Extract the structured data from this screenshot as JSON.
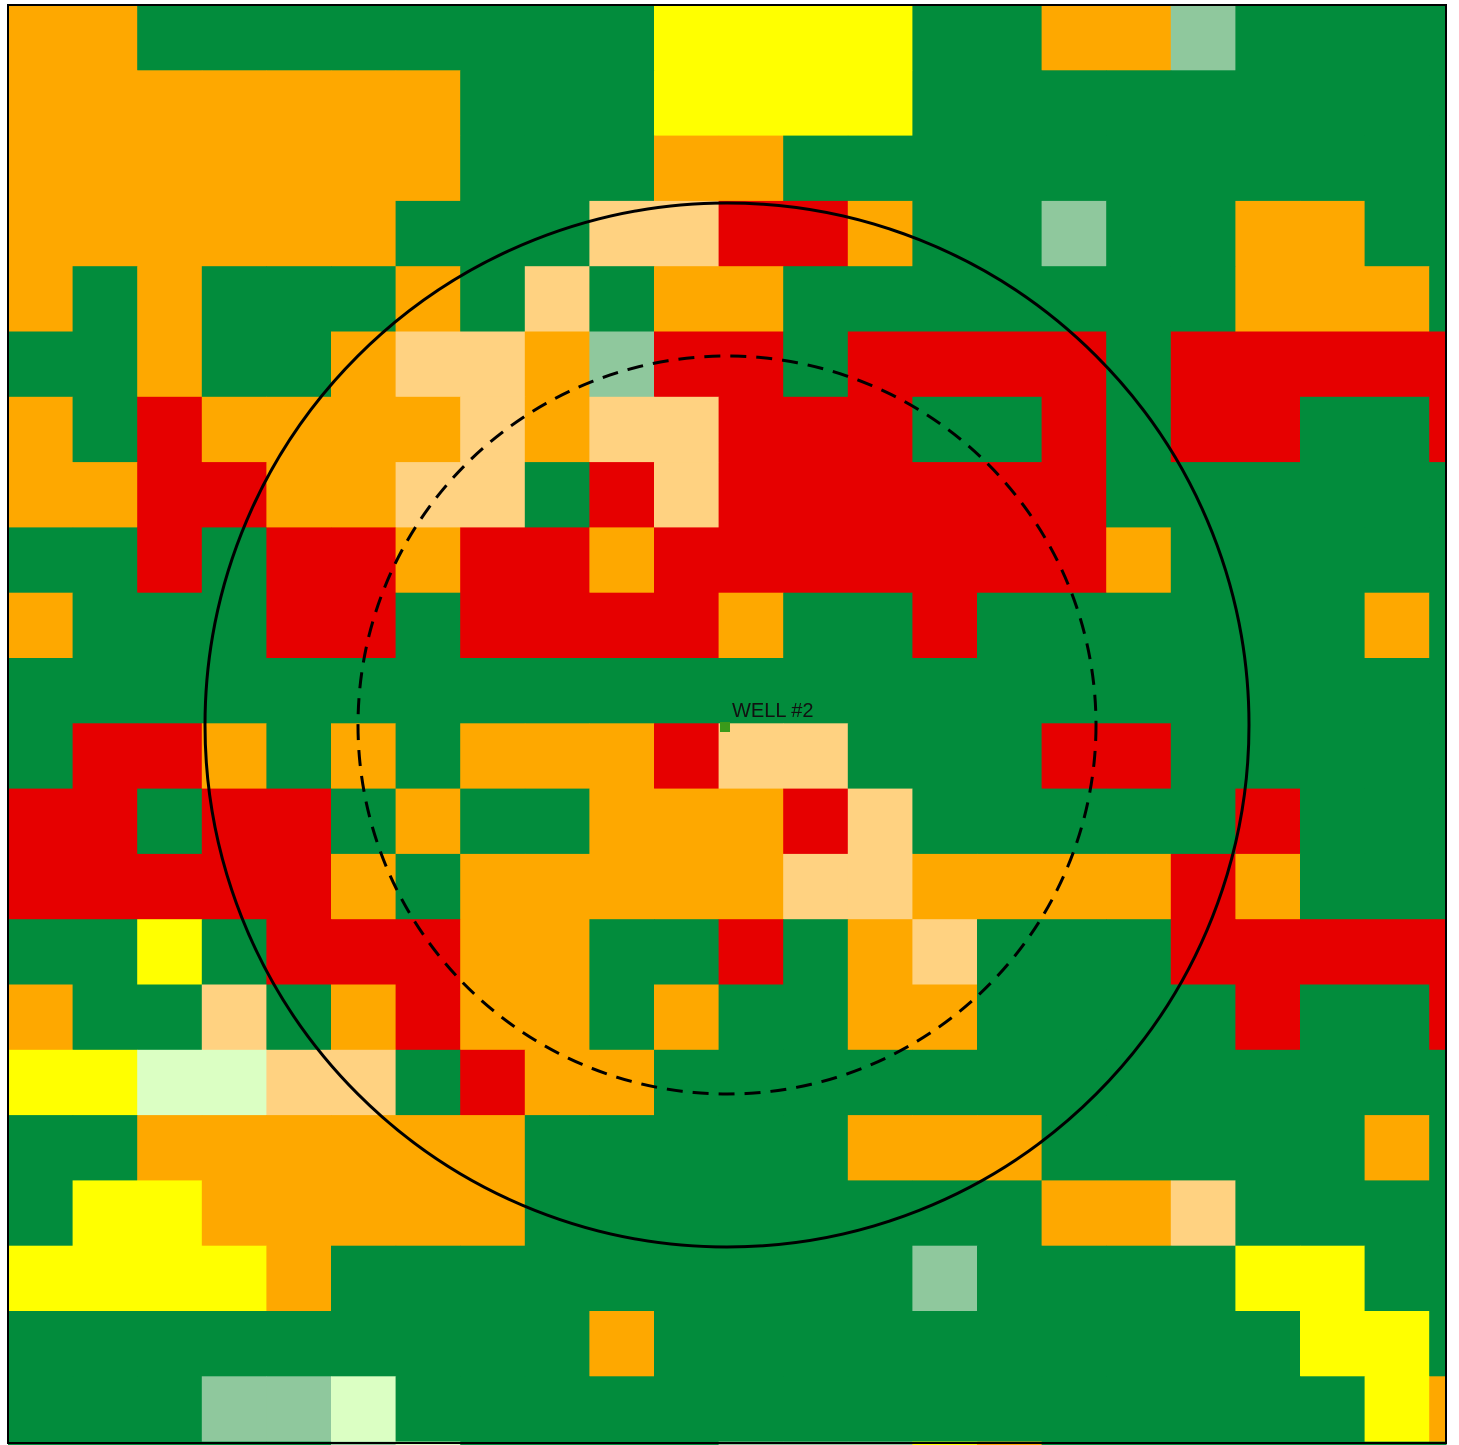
{
  "map": {
    "palette": {
      "g": "#028c3c",
      "o": "#fea800",
      "p": "#ffd281",
      "r": "#e60000",
      "y": "#ffff00",
      "s": "#8fc89d",
      "l": "#dbffc3"
    },
    "rows": [
      "ooggggggggyyyyggoosgggggggg",
      "ooooooogggyyyyggggggggggggg",
      "ooooooogggooggggggggggggggg",
      "oooooogggpprroggsggooggglgg",
      "ogogggogpgoogggggggooogggg",
      "ggoggopposrrgrrrrgrrrrrrrr",
      "ogroooopopprrrggrgrrggrrrr",
      "oorrooppgrprrrrrrgggggggo",
      "ggrgrrorrorrrrrrroggggggg",
      "ogggrrgrrrroggrggggggoggggg",
      "gggggggggggggggggggggggggo",
      "grrogogooorppgggrrgggggoogg",
      "rrgrrgoggooorpgggggrgggggo",
      "rrrrrogoooooppoooorogggoog",
      "ggygrrrooggrgopgggrrrrrrgg",
      "oggpgoroogoggooggggrggrgg",
      "yyllppgrooggggggggggggggo",
      "ggoooooogggggooogggggogp",
      "gyyoooooggggggggoopgggggy",
      "yyyyogggggggggsggggyygggy",
      "gggggggggoggggggggggyyggyy",
      "gggsslgggggggggggggggyoyy",
      "gggggslggggsssyoggggggggg"
    ]
  },
  "well": {
    "label": "WELL #2",
    "marker_color": "#3a9a1a"
  },
  "buffers": [
    {
      "style": "solid"
    },
    {
      "style": "dashed"
    }
  ]
}
